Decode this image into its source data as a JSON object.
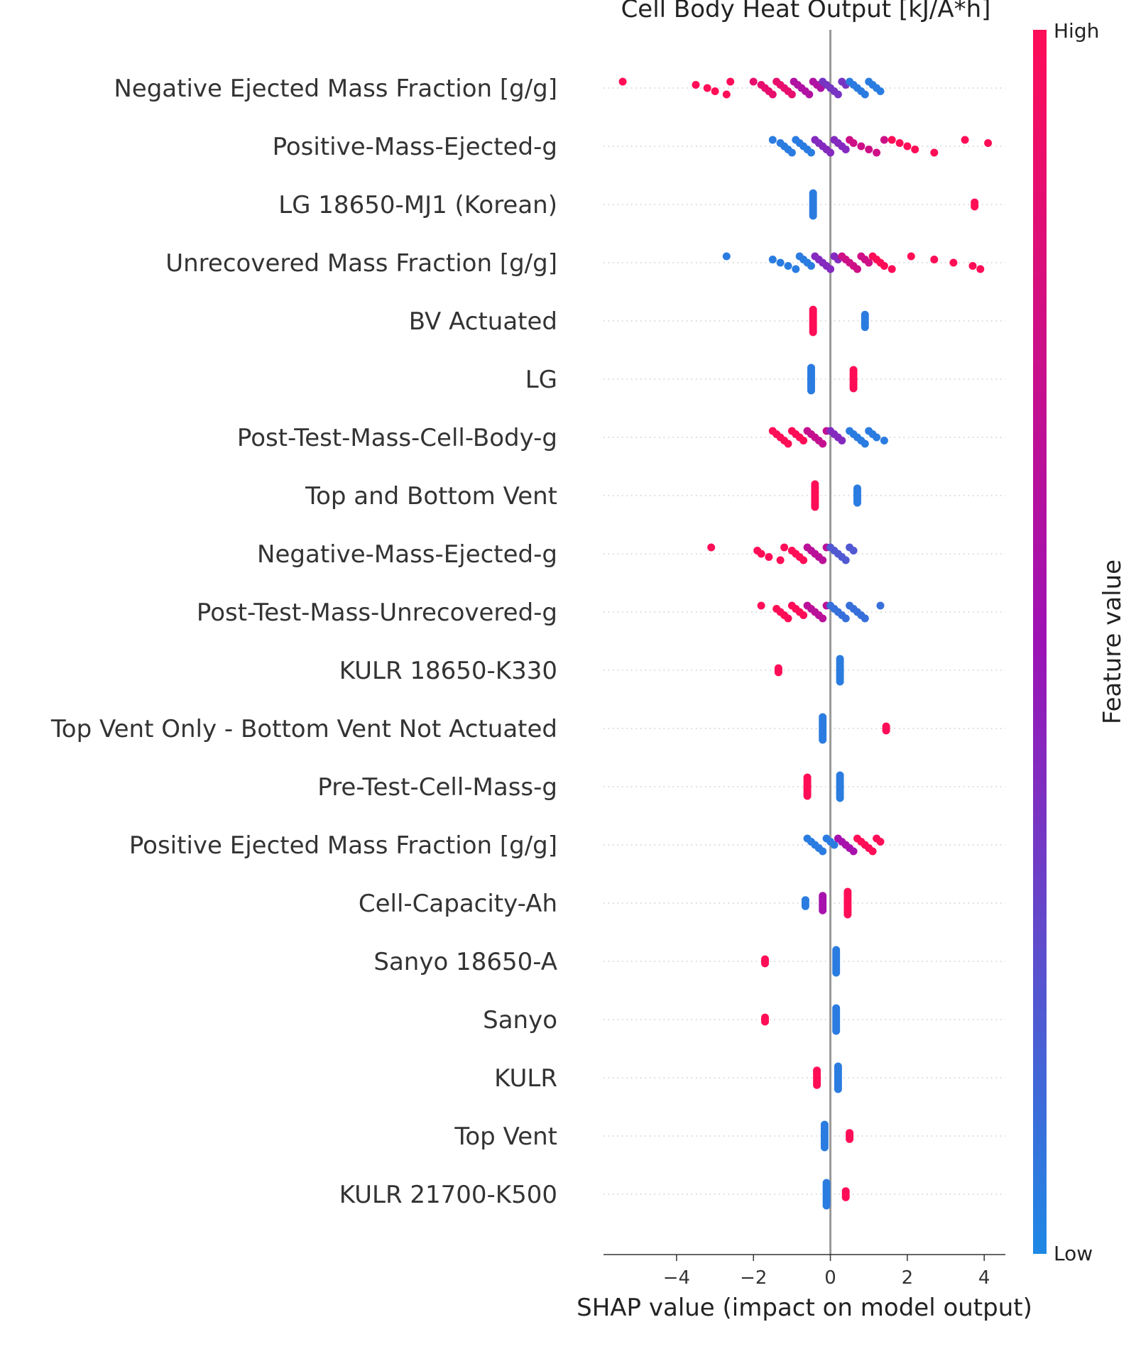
{
  "chart_data": {
    "type": "scatter",
    "subtype": "shap-beeswarm",
    "title": "Cell Body Heat Output [kJ/A*h]",
    "xlabel": "SHAP value (impact on model output)",
    "xlim": [
      -5.9,
      4.55
    ],
    "xticks": [
      -4,
      -2,
      0,
      2,
      4
    ],
    "xtick_labels": [
      "−4",
      "−2",
      "0",
      "2",
      "4"
    ],
    "zero_line": 0,
    "colorbar": {
      "label": "Feature value",
      "high_label": "High",
      "low_label": "Low",
      "high_color": "#ff0d57",
      "low_color": "#1e88e5"
    },
    "features": [
      {
        "name": "Negative Ejected Mass Fraction [g/g]",
        "groups": [
          {
            "x": [
              -5.4,
              -3.5,
              -3.2,
              -3.0,
              -2.7,
              -2.6
            ],
            "v": 1.0
          },
          {
            "x": [
              -2.0,
              -1.8,
              -1.7,
              -1.6,
              -1.5,
              -1.4,
              -1.3,
              -1.2,
              -1.1,
              -1.0
            ],
            "v": 0.88
          },
          {
            "x": [
              -0.95,
              -0.85,
              -0.75,
              -0.65,
              -0.55,
              -0.45,
              -0.35,
              -0.25
            ],
            "v": 0.6
          },
          {
            "x": [
              -0.2,
              -0.1,
              0.0,
              0.1,
              0.2,
              0.3,
              0.4
            ],
            "v": 0.35
          },
          {
            "x": [
              0.5,
              0.6,
              0.7,
              0.8,
              0.9,
              1.0,
              1.1,
              1.2,
              1.3
            ],
            "v": 0.05
          }
        ]
      },
      {
        "name": "Positive-Mass-Ejected-g",
        "groups": [
          {
            "x": [
              -1.5,
              -1.3,
              -1.2,
              -1.1,
              -1.0,
              -0.9,
              -0.8,
              -0.7,
              -0.6,
              -0.5
            ],
            "v": 0.05
          },
          {
            "x": [
              -0.4,
              -0.3,
              -0.2,
              -0.1,
              0.0,
              0.1,
              0.2,
              0.3,
              0.4
            ],
            "v": 0.4
          },
          {
            "x": [
              0.5,
              0.6,
              0.8,
              1.0,
              1.2,
              1.4
            ],
            "v": 0.75
          },
          {
            "x": [
              1.6,
              1.8,
              2.0,
              2.2,
              2.7,
              3.5,
              4.1
            ],
            "v": 1.0
          }
        ]
      },
      {
        "name": "LG 18650-MJ1 (Korean)",
        "groups": [
          {
            "x": [
              -0.45
            ],
            "v": 0.05,
            "n": 12
          },
          {
            "x": [
              3.75
            ],
            "v": 1.0,
            "n": 3
          }
        ]
      },
      {
        "name": "Unrecovered Mass Fraction [g/g]",
        "groups": [
          {
            "x": [
              -2.7,
              -1.5,
              -1.3,
              -1.1,
              -0.9,
              -0.8,
              -0.7,
              -0.6,
              -0.5
            ],
            "v": 0.05
          },
          {
            "x": [
              -0.4,
              -0.3,
              -0.2,
              -0.1,
              0.0,
              0.1,
              0.2
            ],
            "v": 0.4
          },
          {
            "x": [
              0.3,
              0.4,
              0.5,
              0.6,
              0.7,
              0.8,
              0.9,
              1.0
            ],
            "v": 0.75
          },
          {
            "x": [
              1.1,
              1.2,
              1.3,
              1.4,
              1.6,
              2.1,
              2.7,
              3.2,
              3.7,
              3.9
            ],
            "v": 1.0
          }
        ]
      },
      {
        "name": "BV Actuated",
        "groups": [
          {
            "x": [
              -0.45
            ],
            "v": 1.0,
            "n": 12
          },
          {
            "x": [
              0.9
            ],
            "v": 0.05,
            "n": 7
          }
        ]
      },
      {
        "name": "LG",
        "groups": [
          {
            "x": [
              -0.5
            ],
            "v": 0.05,
            "n": 12
          },
          {
            "x": [
              0.6
            ],
            "v": 1.0,
            "n": 10
          }
        ]
      },
      {
        "name": "Post-Test-Mass-Cell-Body-g",
        "groups": [
          {
            "x": [
              -1.5,
              -1.4,
              -1.3,
              -1.2,
              -1.1,
              -1.0,
              -0.9,
              -0.8,
              -0.7
            ],
            "v": 1.0
          },
          {
            "x": [
              -0.6,
              -0.5,
              -0.4,
              -0.3,
              -0.2,
              -0.1
            ],
            "v": 0.7
          },
          {
            "x": [
              0.0,
              0.1,
              0.2,
              0.3
            ],
            "v": 0.4
          },
          {
            "x": [
              0.5,
              0.6,
              0.7,
              0.8,
              0.9,
              1.0,
              1.1,
              1.2,
              1.4
            ],
            "v": 0.05
          }
        ]
      },
      {
        "name": "Top and Bottom Vent",
        "groups": [
          {
            "x": [
              -0.4
            ],
            "v": 1.0,
            "n": 12
          },
          {
            "x": [
              0.7
            ],
            "v": 0.05,
            "n": 8
          }
        ]
      },
      {
        "name": "Negative-Mass-Ejected-g",
        "groups": [
          {
            "x": [
              -3.1,
              -1.9,
              -1.8,
              -1.6,
              -1.3,
              -1.2,
              -1.0,
              -0.9,
              -0.8,
              -0.7
            ],
            "v": 1.0
          },
          {
            "x": [
              -0.6,
              -0.5,
              -0.4,
              -0.3,
              -0.2,
              -0.1
            ],
            "v": 0.65
          },
          {
            "x": [
              0.0,
              0.1,
              0.2,
              0.3,
              0.4,
              0.5,
              0.6
            ],
            "v": 0.2
          }
        ]
      },
      {
        "name": "Post-Test-Mass-Unrecovered-g",
        "groups": [
          {
            "x": [
              -1.8,
              -1.4,
              -1.3,
              -1.2,
              -1.1,
              -1.0,
              -0.9,
              -0.8,
              -0.7
            ],
            "v": 1.0
          },
          {
            "x": [
              -0.6,
              -0.5,
              -0.4,
              -0.3,
              -0.2,
              -0.1
            ],
            "v": 0.65
          },
          {
            "x": [
              0.0,
              0.1,
              0.2,
              0.3,
              0.4,
              0.5,
              0.6,
              0.7,
              0.8,
              0.9,
              1.3
            ],
            "v": 0.1
          }
        ]
      },
      {
        "name": "KULR 18650-K330",
        "groups": [
          {
            "x": [
              -1.35
            ],
            "v": 1.0,
            "n": 3
          },
          {
            "x": [
              0.25
            ],
            "v": 0.05,
            "n": 12
          }
        ]
      },
      {
        "name": "Top Vent Only - Bottom Vent Not Actuated",
        "groups": [
          {
            "x": [
              -0.2
            ],
            "v": 0.05,
            "n": 12
          },
          {
            "x": [
              1.45
            ],
            "v": 1.0,
            "n": 3
          }
        ]
      },
      {
        "name": "Pre-Test-Cell-Mass-g",
        "groups": [
          {
            "x": [
              -0.6
            ],
            "v": 1.0,
            "n": 10
          },
          {
            "x": [
              0.25
            ],
            "v": 0.05,
            "n": 12
          }
        ]
      },
      {
        "name": "Positive Ejected Mass Fraction [g/g]",
        "groups": [
          {
            "x": [
              -0.6,
              -0.5,
              -0.4,
              -0.3,
              -0.2,
              -0.1,
              0.0,
              0.1
            ],
            "v": 0.05
          },
          {
            "x": [
              0.2,
              0.3,
              0.4,
              0.5,
              0.6
            ],
            "v": 0.55
          },
          {
            "x": [
              0.7,
              0.8,
              0.9,
              1.0,
              1.1,
              1.2,
              1.3
            ],
            "v": 1.0
          }
        ]
      },
      {
        "name": "Cell-Capacity-Ah",
        "groups": [
          {
            "x": [
              -0.65
            ],
            "v": 0.05,
            "n": 4
          },
          {
            "x": [
              -0.2
            ],
            "v": 0.55,
            "n": 8
          },
          {
            "x": [
              0.45
            ],
            "v": 1.0,
            "n": 12
          }
        ]
      },
      {
        "name": "Sanyo 18650-A",
        "groups": [
          {
            "x": [
              -1.7
            ],
            "v": 1.0,
            "n": 3
          },
          {
            "x": [
              0.15
            ],
            "v": 0.05,
            "n": 12
          }
        ]
      },
      {
        "name": "Sanyo",
        "groups": [
          {
            "x": [
              -1.7
            ],
            "v": 1.0,
            "n": 3
          },
          {
            "x": [
              0.15
            ],
            "v": 0.05,
            "n": 12
          }
        ]
      },
      {
        "name": "KULR",
        "groups": [
          {
            "x": [
              -0.35
            ],
            "v": 1.0,
            "n": 8
          },
          {
            "x": [
              0.2
            ],
            "v": 0.05,
            "n": 12
          }
        ]
      },
      {
        "name": "Top Vent",
        "groups": [
          {
            "x": [
              -0.15
            ],
            "v": 0.05,
            "n": 12
          },
          {
            "x": [
              0.5
            ],
            "v": 1.0,
            "n": 4
          }
        ]
      },
      {
        "name": "KULR 21700-K500",
        "groups": [
          {
            "x": [
              -0.1
            ],
            "v": 0.05,
            "n": 12
          },
          {
            "x": [
              0.4
            ],
            "v": 1.0,
            "n": 4
          }
        ]
      }
    ]
  }
}
